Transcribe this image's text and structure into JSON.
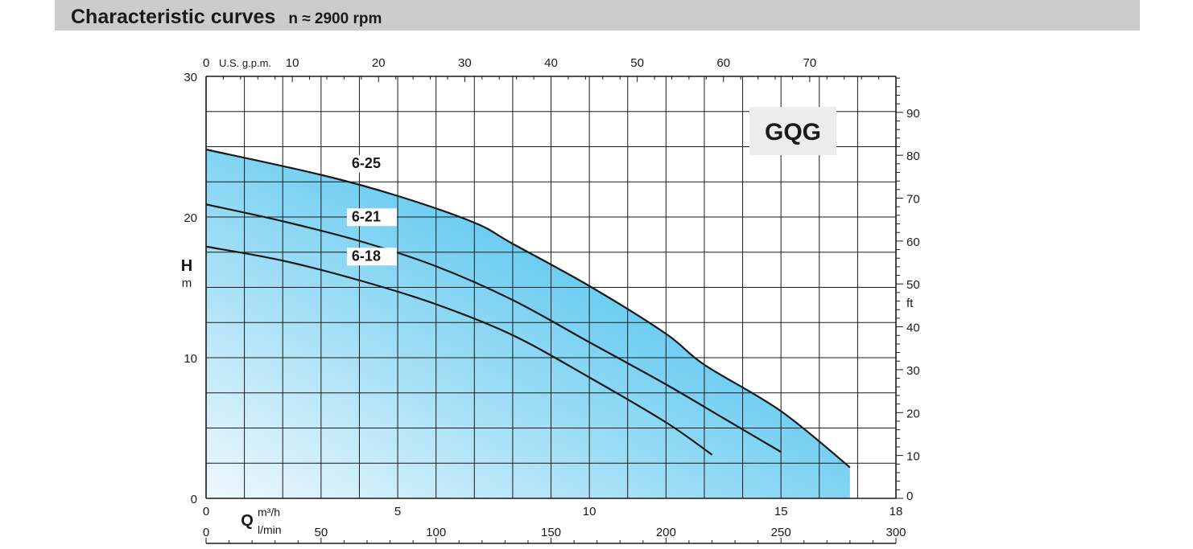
{
  "header": {
    "title": "Characteristic curves",
    "speed": "n ≈ 2900 rpm"
  },
  "chart_data": {
    "type": "line",
    "model": "GQG",
    "x": {
      "label": "Q",
      "unit_primary": "m³/h",
      "unit_secondary": "l/min",
      "range": [
        0,
        18
      ],
      "major_ticks": [
        0,
        5,
        10,
        15,
        18
      ],
      "secondary_range": [
        0,
        300
      ],
      "secondary_ticks": [
        0,
        50,
        100,
        150,
        200,
        250,
        300
      ],
      "top_unit": "U.S. g.p.m.",
      "top_range": [
        0,
        80
      ],
      "top_ticks": [
        0,
        10,
        20,
        30,
        40,
        50,
        60,
        70
      ]
    },
    "y": {
      "label": "H",
      "unit": "m",
      "range": [
        0,
        30
      ],
      "ticks": [
        0,
        10,
        20
      ],
      "right_unit": "ft",
      "right_range": [
        0,
        98.4
      ],
      "right_ticks": [
        0,
        10,
        20,
        30,
        40,
        50,
        60,
        70,
        80,
        90
      ]
    },
    "series": [
      {
        "name": "6-25",
        "points": [
          [
            0,
            24.8
          ],
          [
            3,
            23
          ],
          [
            5,
            21.5
          ],
          [
            7,
            19.6
          ],
          [
            8,
            18.1
          ],
          [
            10,
            15.1
          ],
          [
            12,
            11.7
          ],
          [
            13,
            9.5
          ],
          [
            15,
            6.2
          ],
          [
            16.8,
            2.2
          ]
        ]
      },
      {
        "name": "6-21",
        "points": [
          [
            0,
            20.9
          ],
          [
            2,
            19.7
          ],
          [
            4,
            18.3
          ],
          [
            6,
            16.5
          ],
          [
            8,
            14.1
          ],
          [
            10,
            11.1
          ],
          [
            12,
            8.1
          ],
          [
            13.5,
            5.7
          ],
          [
            15,
            3.3
          ]
        ]
      },
      {
        "name": "6-18",
        "points": [
          [
            0,
            17.9
          ],
          [
            2,
            16.9
          ],
          [
            4,
            15.5
          ],
          [
            6,
            13.8
          ],
          [
            8,
            11.6
          ],
          [
            10,
            8.6
          ],
          [
            12,
            5.4
          ],
          [
            13.2,
            3.1
          ]
        ]
      }
    ],
    "colors": {
      "fill_top": "#6dcdf1",
      "fill_bottom": "#eef8fd",
      "grid": "#1a1a1a",
      "line": "#1a1a1a",
      "badge_bg": "#ececec"
    },
    "grid": true
  }
}
